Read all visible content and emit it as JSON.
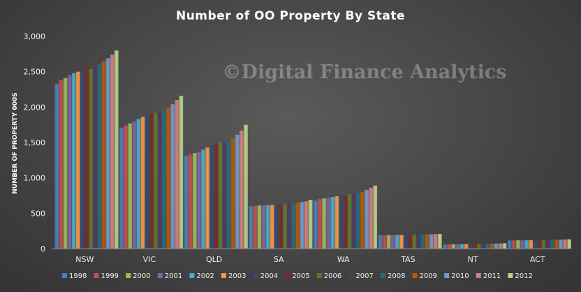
{
  "chart_data": {
    "type": "bar",
    "title": "Number  of OO Property  By State",
    "ylabel": "NUMBER OF PROPERTY 000S",
    "xlabel": "",
    "ylim": [
      0,
      3000
    ],
    "yticks": [
      "0",
      "500",
      "1,000",
      "1,500",
      "2,000",
      "2,500",
      "3,000"
    ],
    "grid": false,
    "legend_position": "bottom",
    "watermark": "©Digital Finance Analytics",
    "categories": [
      "NSW",
      "VIC",
      "QLD",
      "SA",
      "WA",
      "TAS",
      "NT",
      "ACT"
    ],
    "series": [
      {
        "name": "1998",
        "color": "#4a7ebb",
        "values": [
          2330,
          1710,
          1310,
          600,
          680,
          190,
          60,
          115
        ]
      },
      {
        "name": "1999",
        "color": "#c0504d",
        "values": [
          2380,
          1740,
          1330,
          605,
          700,
          192,
          62,
          117
        ]
      },
      {
        "name": "2000",
        "color": "#9bbb59",
        "values": [
          2410,
          1770,
          1350,
          610,
          710,
          193,
          63,
          118
        ]
      },
      {
        "name": "2001",
        "color": "#8064a2",
        "values": [
          2450,
          1800,
          1370,
          612,
          720,
          194,
          64,
          119
        ]
      },
      {
        "name": "2002",
        "color": "#4bacc6",
        "values": [
          2480,
          1830,
          1400,
          615,
          730,
          195,
          65,
          120
        ]
      },
      {
        "name": "2003",
        "color": "#f79646",
        "values": [
          2500,
          1860,
          1430,
          618,
          740,
          196,
          66,
          121
        ]
      },
      {
        "name": "2004",
        "color": "#2c4d75",
        "values": [
          2530,
          1880,
          1460,
          620,
          750,
          197,
          67,
          122
        ]
      },
      {
        "name": "2005",
        "color": "#772c2a",
        "values": [
          2570,
          1910,
          1490,
          622,
          760,
          198,
          68,
          123
        ]
      },
      {
        "name": "2006",
        "color": "#5f7530",
        "values": [
          2540,
          1920,
          1510,
          625,
          770,
          199,
          69,
          124
        ]
      },
      {
        "name": "2007",
        "color": "#4d3b62",
        "values": [
          2570,
          1930,
          1500,
          630,
          780,
          200,
          70,
          125
        ]
      },
      {
        "name": "2008",
        "color": "#276a7c",
        "values": [
          2600,
          1960,
          1520,
          640,
          790,
          201,
          71,
          126
        ]
      },
      {
        "name": "2009",
        "color": "#b65708",
        "values": [
          2650,
          1990,
          1560,
          650,
          800,
          202,
          72,
          127
        ]
      },
      {
        "name": "2010",
        "color": "#729aca",
        "values": [
          2690,
          2040,
          1610,
          660,
          830,
          203,
          73,
          129
        ]
      },
      {
        "name": "2011",
        "color": "#d0807e",
        "values": [
          2740,
          2100,
          1670,
          670,
          860,
          205,
          74,
          131
        ]
      },
      {
        "name": "2012",
        "color": "#b9cf8a",
        "values": [
          2800,
          2160,
          1750,
          690,
          890,
          208,
          76,
          133
        ]
      }
    ]
  }
}
